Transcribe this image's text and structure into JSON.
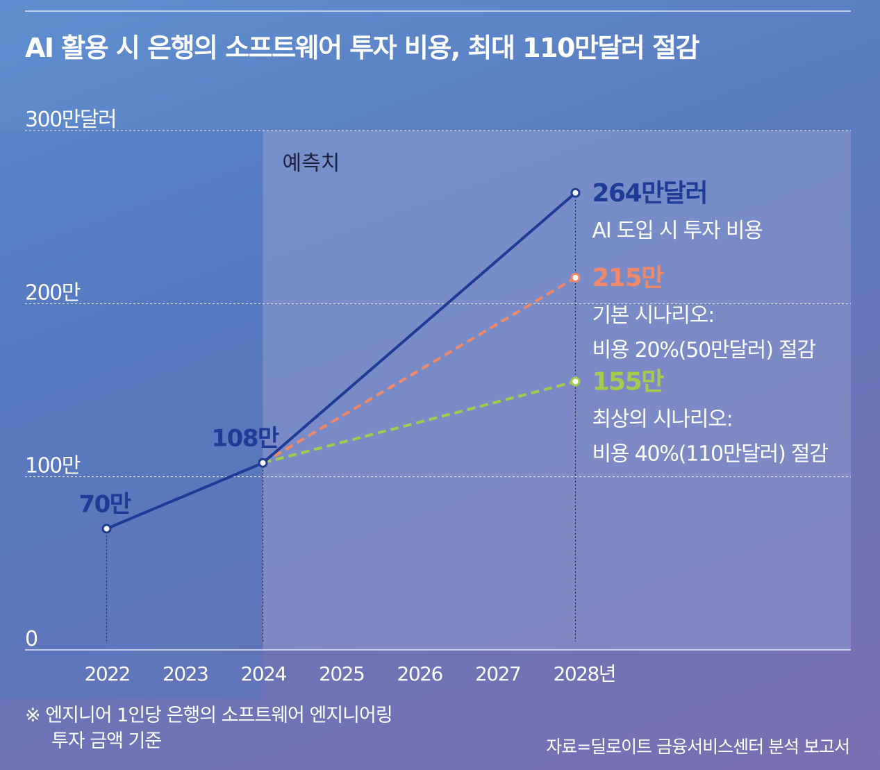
{
  "title": "AI 활용 시 은행의 소프트웨어 투자 비용, 최대 110만달러 절감",
  "footnote": {
    "line1": "※ 엔지니어 1인당 은행의 소프트웨어 엔지니어링",
    "line2": "투자 금액 기준"
  },
  "source": "자료=딜로이트 금융서비스센터 분석 보고서",
  "colors": {
    "ai": "#1f3b95",
    "base": "#f0896a",
    "best": "#a3cc4e",
    "forecast_band": "#8e9ad0"
  },
  "chart_data": {
    "type": "line",
    "x": [
      2022,
      2023,
      2024,
      2025,
      2026,
      2027,
      2028
    ],
    "x_tick_labels": [
      "2022",
      "2023",
      "2024",
      "2025",
      "2026",
      "2027",
      "2028년"
    ],
    "ylim": [
      0,
      300
    ],
    "y_tick_values": [
      0,
      100,
      200,
      300
    ],
    "y_tick_labels": [
      "0",
      "100만",
      "200만",
      "300만달러"
    ],
    "forecast_label": "예측치",
    "forecast_start": 2024,
    "series": [
      {
        "key": "ai",
        "points": [
          {
            "x": 2022,
            "y": 70,
            "label": "70만"
          },
          {
            "x": 2024,
            "y": 108,
            "label": "108만"
          },
          {
            "x": 2028,
            "y": 264,
            "label": "264만달러"
          }
        ],
        "annotation": [
          "AI 도입 시 투자 비용"
        ]
      },
      {
        "key": "base",
        "points": [
          {
            "x": 2024,
            "y": 108
          },
          {
            "x": 2028,
            "y": 215,
            "label": "215만"
          }
        ],
        "annotation": [
          "기본 시나리오:",
          "비용 20%(50만달러) 절감"
        ]
      },
      {
        "key": "best",
        "points": [
          {
            "x": 2024,
            "y": 108
          },
          {
            "x": 2028,
            "y": 155,
            "label": "155만"
          }
        ],
        "annotation": [
          "최상의 시나리오:",
          "비용 40%(110만달러) 절감"
        ]
      }
    ]
  }
}
